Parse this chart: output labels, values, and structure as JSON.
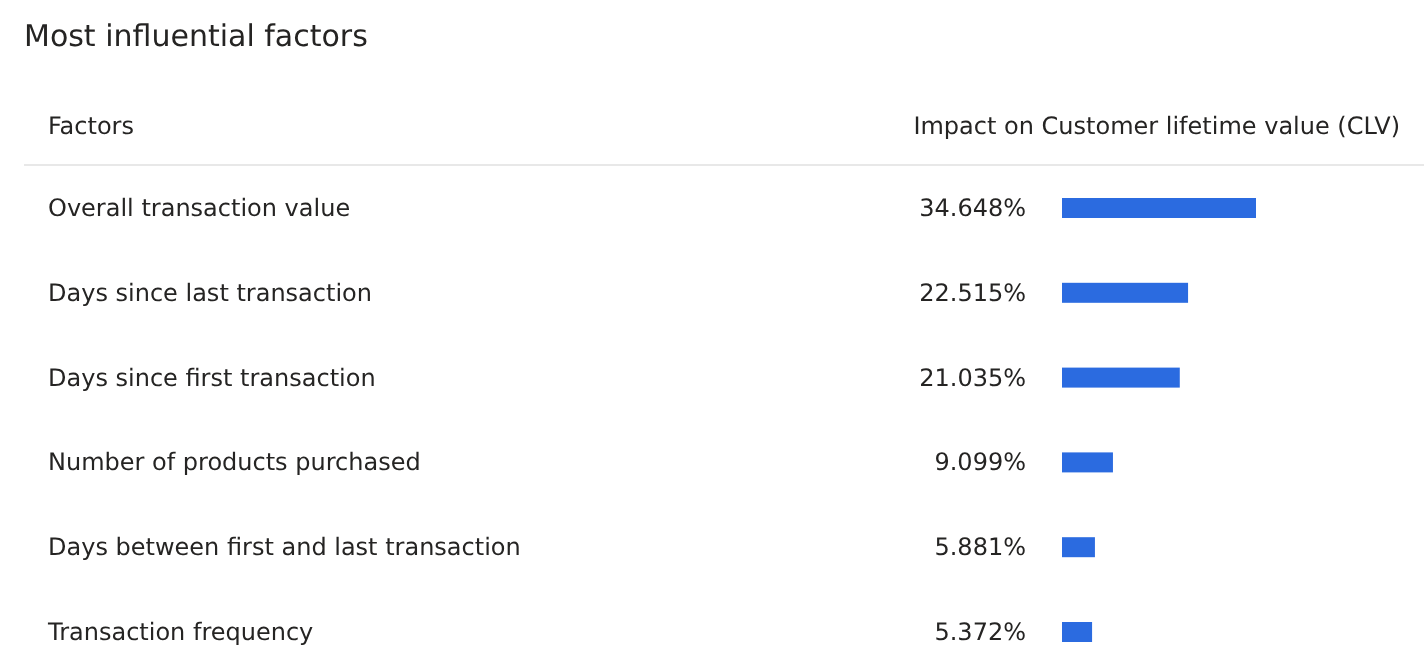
{
  "chart_data": {
    "type": "bar",
    "orientation": "horizontal",
    "title": "Most influential factors",
    "ylabel": "Factors",
    "xlabel": "Impact on Customer lifetime value (CLV)",
    "categories": [
      "Overall transaction value",
      "Days since last transaction",
      "Days since first transaction",
      "Number of products purchased",
      "Days between first and last transaction",
      "Transaction frequency"
    ],
    "values": [
      34.648,
      22.515,
      21.035,
      9.099,
      5.881,
      5.372
    ],
    "value_labels": [
      "34.648%",
      "22.515%",
      "21.035%",
      "9.099%",
      "5.881%",
      "5.372%"
    ],
    "color": "#2b6be0"
  }
}
